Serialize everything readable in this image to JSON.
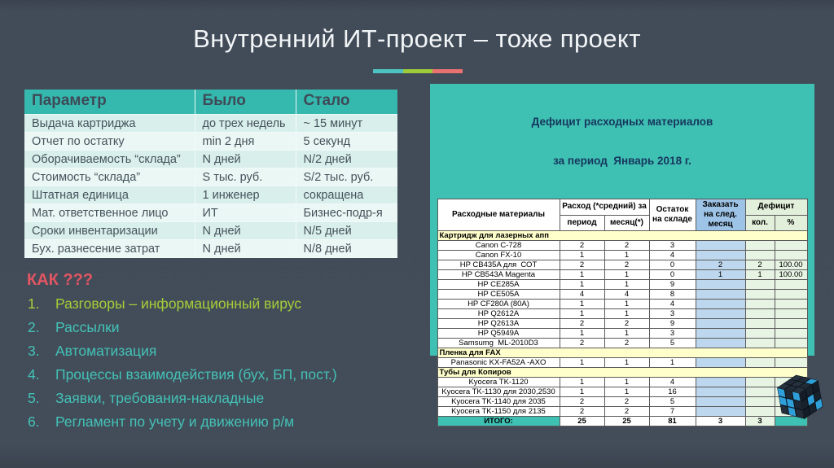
{
  "slide": {
    "title": "Внутренний ИТ-проект – тоже проект",
    "accent_bar": [
      "#4cc3c0",
      "#9ecc3b",
      "#e9716f"
    ]
  },
  "comparison_table": {
    "headers": [
      "Параметр",
      "Было",
      "Стало"
    ],
    "rows": [
      [
        "Выдача картриджа",
        "до трех недель",
        "~ 15 минут"
      ],
      [
        "Отчет по остатку",
        "min 2 дня",
        "5 секунд"
      ],
      [
        "Оборачиваемость “склада”",
        "N дней",
        "N/2 дней"
      ],
      [
        "Стоимость “склада”",
        "S тыс. руб.",
        "S/2 тыс. руб."
      ],
      [
        "Штатная единица",
        "1 инженер",
        "сокращена"
      ],
      [
        "Мат. ответственное лицо",
        "ИТ",
        "Бизнес-подр-я"
      ],
      [
        "Сроки инвентаризации",
        "N дней",
        "N/5 дней"
      ],
      [
        "Бух. разнесение затрат",
        "N дней",
        "N/8 дней"
      ]
    ]
  },
  "how": {
    "heading": "КАК ???",
    "heading_color": "#e45562",
    "items": [
      {
        "num": "1.",
        "text": "Разговоры – информационный вирус",
        "color": "#a6ce38"
      },
      {
        "num": "2.",
        "text": "Рассылки",
        "color": "#43c2b7"
      },
      {
        "num": "3.",
        "text": "Автоматизация",
        "color": "#43c2b7"
      },
      {
        "num": "4.",
        "text": "Процессы взаимодействия (бух, БП, пост.)",
        "color": "#43c2b7"
      },
      {
        "num": "5.",
        "text": "Заявки, требования-накладные",
        "color": "#43c2b7"
      },
      {
        "num": "6.",
        "text": "Регламент по учету и движению р/м",
        "color": "#43c2b7"
      }
    ]
  },
  "report": {
    "title_line1": "Дефицит расходных материалов",
    "title_line2": "за период  Январь 2018 г.",
    "headers": {
      "materials": "Расходные материалы",
      "consumption": "Расход (*средний) за",
      "period": "период",
      "month": "месяц(*)",
      "stock": "Остаток на складе",
      "order": "Заказать на след. месяц",
      "deficit": "Дефицит",
      "qty": "кол.",
      "pct": "%"
    },
    "sections": [
      {
        "name": "Картридж для лазерных апп",
        "rows": [
          {
            "name": "Canon C-728",
            "period": "2",
            "month": "2",
            "stock": "3",
            "order": "",
            "qty": "",
            "pct": ""
          },
          {
            "name": "Canon FX-10",
            "period": "1",
            "month": "1",
            "stock": "4",
            "order": "",
            "qty": "",
            "pct": ""
          },
          {
            "name": "HP CB435A для  СОТ",
            "period": "2",
            "month": "2",
            "stock": "0",
            "order": "2",
            "qty": "2",
            "pct": "100.00"
          },
          {
            "name": "HP CB543A Magenta",
            "period": "1",
            "month": "1",
            "stock": "0",
            "order": "1",
            "qty": "1",
            "pct": "100.00"
          },
          {
            "name": "HP CE285A",
            "period": "1",
            "month": "1",
            "stock": "9",
            "order": "",
            "qty": "",
            "pct": ""
          },
          {
            "name": "HP CE505A",
            "period": "4",
            "month": "4",
            "stock": "8",
            "order": "",
            "qty": "",
            "pct": ""
          },
          {
            "name": "HP CF280A (80A)",
            "period": "1",
            "month": "1",
            "stock": "4",
            "order": "",
            "qty": "",
            "pct": ""
          },
          {
            "name": "HP Q2612A",
            "period": "1",
            "month": "1",
            "stock": "3",
            "order": "",
            "qty": "",
            "pct": ""
          },
          {
            "name": "HP Q2613A",
            "period": "2",
            "month": "2",
            "stock": "9",
            "order": "",
            "qty": "",
            "pct": ""
          },
          {
            "name": "HP Q5949A",
            "period": "1",
            "month": "1",
            "stock": "3",
            "order": "",
            "qty": "",
            "pct": ""
          },
          {
            "name": "Samsumg  ML-2010D3",
            "period": "2",
            "month": "2",
            "stock": "5",
            "order": "",
            "qty": "",
            "pct": ""
          }
        ]
      },
      {
        "name": "Пленка для FAX",
        "rows": [
          {
            "name": "Panasonic KX-FA52A -AXO",
            "period": "1",
            "month": "1",
            "stock": "1",
            "order": "",
            "qty": "",
            "pct": ""
          }
        ]
      },
      {
        "name": "Тубы для Копиров",
        "rows": [
          {
            "name": "Kyocera TK-1120",
            "period": "1",
            "month": "1",
            "stock": "4",
            "order": "",
            "qty": "",
            "pct": ""
          },
          {
            "name": "Kyocera TK-1130 для 2030,2530",
            "period": "1",
            "month": "1",
            "stock": "16",
            "order": "",
            "qty": "",
            "pct": ""
          },
          {
            "name": "Kyocera TK-1140 для 2035",
            "period": "2",
            "month": "2",
            "stock": "5",
            "order": "",
            "qty": "",
            "pct": ""
          },
          {
            "name": "Kyocera TK-1150 для 2135",
            "period": "2",
            "month": "2",
            "stock": "7",
            "order": "",
            "qty": "",
            "pct": ""
          }
        ]
      }
    ],
    "total": {
      "label": "ИТОГО:",
      "period": "25",
      "month": "25",
      "stock": "81",
      "order": "3",
      "qty": "3"
    }
  },
  "cube": {
    "body": "#1d2834",
    "accent": "#2e9fd9"
  }
}
